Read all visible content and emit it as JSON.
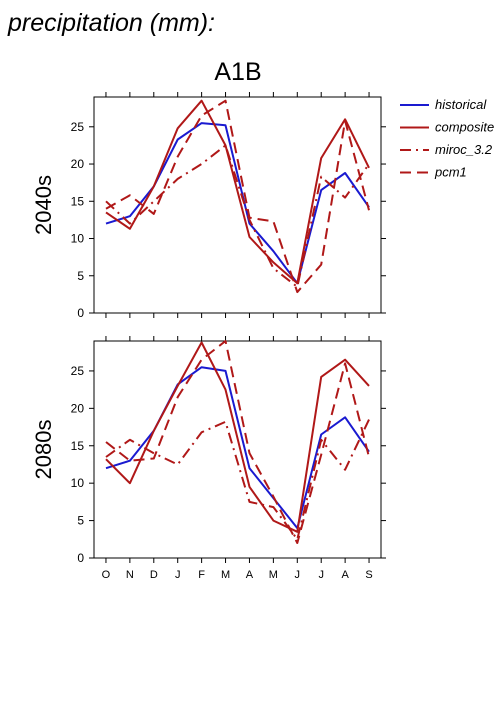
{
  "page_title": "precipitation (mm):",
  "scenario": "A1B",
  "colors": {
    "historical": "#1a1ad0",
    "models": "#b01818"
  },
  "legend": [
    {
      "name": "historical",
      "color": "#1a1ad0",
      "dash": "solid"
    },
    {
      "name": "composite",
      "color": "#b01818",
      "dash": "solid"
    },
    {
      "name": "miroc_3.2",
      "color": "#b01818",
      "dash": "dashdot"
    },
    {
      "name": "pcm1",
      "color": "#b01818",
      "dash": "dash"
    }
  ],
  "chart_data": [
    {
      "type": "line",
      "ylabel": "2040s",
      "ylim": [
        0,
        29
      ],
      "yticks": [
        0,
        5,
        10,
        15,
        20,
        25
      ],
      "categories": [
        "O",
        "N",
        "D",
        "J",
        "F",
        "M",
        "A",
        "M",
        "J",
        "J",
        "A",
        "S"
      ],
      "series": [
        {
          "name": "historical",
          "values": [
            12.0,
            13.0,
            17.0,
            23.3,
            25.5,
            25.2,
            12.0,
            8.3,
            4.0,
            16.5,
            18.8,
            14.2
          ]
        },
        {
          "name": "composite",
          "values": [
            13.5,
            11.3,
            17.0,
            24.8,
            28.5,
            22.5,
            10.2,
            6.8,
            4.0,
            20.8,
            26.0,
            19.5
          ]
        },
        {
          "name": "miroc_3.2",
          "values": [
            15.0,
            12.0,
            15.0,
            18.0,
            20.0,
            22.5,
            12.5,
            6.0,
            3.5,
            18.3,
            15.5,
            20.0
          ]
        },
        {
          "name": "pcm1",
          "values": [
            14.0,
            15.8,
            13.3,
            21.0,
            26.5,
            28.5,
            12.8,
            12.3,
            2.8,
            6.5,
            25.8,
            13.8
          ]
        }
      ]
    },
    {
      "type": "line",
      "ylabel": "2080s",
      "ylim": [
        0,
        29
      ],
      "yticks": [
        0,
        5,
        10,
        15,
        20,
        25
      ],
      "categories": [
        "O",
        "N",
        "D",
        "J",
        "F",
        "M",
        "A",
        "M",
        "J",
        "J",
        "A",
        "S"
      ],
      "series": [
        {
          "name": "historical",
          "values": [
            12.0,
            13.0,
            17.0,
            23.2,
            25.5,
            25.0,
            12.0,
            8.0,
            4.0,
            16.5,
            18.8,
            14.2
          ]
        },
        {
          "name": "composite",
          "values": [
            13.2,
            10.0,
            17.0,
            23.0,
            28.8,
            22.5,
            9.5,
            5.0,
            3.5,
            24.2,
            26.5,
            23.0
          ]
        },
        {
          "name": "miroc_3.2",
          "values": [
            13.5,
            15.8,
            14.0,
            12.5,
            16.8,
            18.2,
            7.5,
            6.8,
            2.5,
            15.8,
            11.8,
            18.5
          ]
        },
        {
          "name": "pcm1",
          "values": [
            15.5,
            13.0,
            13.3,
            21.5,
            26.5,
            29.0,
            14.0,
            8.2,
            2.0,
            13.8,
            26.0,
            13.5
          ]
        }
      ]
    }
  ]
}
